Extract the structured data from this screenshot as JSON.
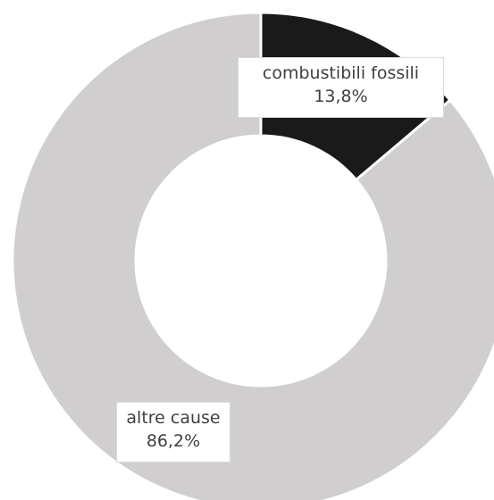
{
  "chart_data": {
    "type": "pie",
    "donut": true,
    "title": "",
    "slices": [
      {
        "label": "combustibili fossili",
        "value": 13.8,
        "value_label": "13,8%",
        "color": "#1a1a1a"
      },
      {
        "label": "altre cause",
        "value": 86.2,
        "value_label": "86,2%",
        "color": "#d0cece"
      }
    ],
    "legend": "none",
    "start_angle": "12 o'clock",
    "direction": "clockwise"
  }
}
